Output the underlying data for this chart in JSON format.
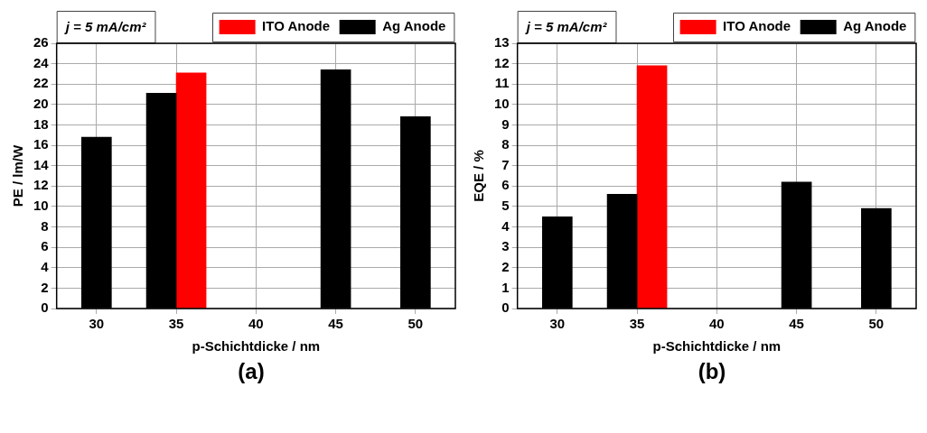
{
  "chart_data": [
    {
      "type": "bar",
      "categories": [
        "30",
        "35",
        "40",
        "45",
        "50"
      ],
      "xlabel": "p-Schichtdicke / nm",
      "ylabel": "PE / lm/W",
      "ylim": [
        0,
        26
      ],
      "yticks": [
        0,
        2,
        4,
        6,
        8,
        10,
        12,
        14,
        16,
        18,
        20,
        22,
        24,
        26
      ],
      "grid": true,
      "legend": "top right",
      "annotations": [
        "j = 5 mA/cm²",
        "(a)"
      ],
      "series": [
        {
          "name": "Ag Anode",
          "color": "#000000",
          "values": [
            16.8,
            21.1,
            null,
            23.4,
            18.8
          ]
        },
        {
          "name": "ITO Anode",
          "color": "#ff0000",
          "values": [
            null,
            23.1,
            null,
            null,
            null
          ]
        }
      ]
    },
    {
      "type": "bar",
      "categories": [
        "30",
        "35",
        "40",
        "45",
        "50"
      ],
      "xlabel": "p-Schichtdicke / nm",
      "ylabel": "EQE / %",
      "ylim": [
        0,
        13
      ],
      "yticks": [
        0,
        1,
        2,
        3,
        4,
        5,
        6,
        7,
        8,
        9,
        10,
        11,
        12,
        13
      ],
      "grid": true,
      "legend": "top right",
      "annotations": [
        "j = 5 mA/cm²",
        "(b)"
      ],
      "series": [
        {
          "name": "Ag Anode",
          "color": "#000000",
          "values": [
            4.5,
            5.6,
            null,
            6.2,
            4.9
          ]
        },
        {
          "name": "ITO Anode",
          "color": "#ff0000",
          "values": [
            null,
            11.9,
            null,
            null,
            null
          ]
        }
      ]
    }
  ]
}
